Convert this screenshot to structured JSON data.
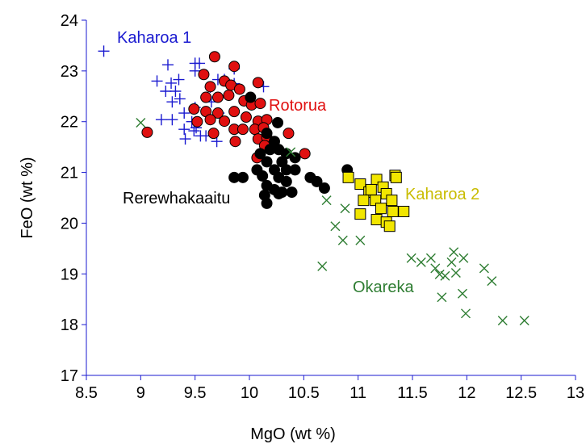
{
  "chart_data": {
    "type": "scatter",
    "xlabel": "MgO (wt %)",
    "ylabel": "FeO (wt %)",
    "xlim": [
      8.5,
      13
    ],
    "ylim": [
      17,
      24
    ],
    "xticks": [
      8.5,
      9,
      9.5,
      10,
      10.5,
      11,
      11.5,
      12,
      12.5,
      13
    ],
    "yticks": [
      17,
      18,
      19,
      20,
      21,
      22,
      23,
      24
    ],
    "series": [
      {
        "name": "Kaharoa 1",
        "color": "#1a1ad0",
        "marker": "plus",
        "x": [
          8.66,
          9.25,
          9.15,
          9.28,
          9.5,
          9.5,
          9.54,
          9.35,
          9.23,
          9.32,
          9.29,
          9.36,
          9.19,
          9.29,
          9.4,
          9.5,
          9.4,
          9.41,
          9.51,
          9.55,
          9.64,
          9.71,
          9.77,
          9.86,
          9.86,
          9.65,
          9.72,
          9.49,
          10.13,
          9.47,
          9.6,
          9.7
        ],
        "y": [
          23.39,
          23.12,
          22.8,
          22.76,
          23.15,
          23.0,
          23.15,
          22.83,
          22.6,
          22.6,
          22.39,
          22.45,
          22.04,
          22.04,
          22.17,
          22.28,
          21.85,
          21.66,
          21.88,
          21.72,
          22.68,
          22.83,
          22.83,
          23.04,
          22.75,
          22.39,
          22.17,
          21.82,
          22.69,
          22.0,
          21.72,
          21.61
        ]
      },
      {
        "name": "Rotorua",
        "color": "#e01010",
        "marker": "circle",
        "x": [
          9.68,
          9.86,
          9.06,
          9.58,
          9.64,
          9.77,
          9.83,
          9.91,
          10.08,
          9.6,
          9.71,
          9.81,
          9.95,
          10.02,
          10.1,
          9.49,
          9.6,
          9.71,
          9.86,
          9.97,
          10.08,
          10.16,
          9.64,
          9.77,
          9.86,
          9.94,
          10.05,
          10.13,
          10.36,
          9.67,
          9.87,
          10.08,
          10.16,
          10.07,
          10.51,
          10.14,
          9.52
        ],
        "y": [
          23.28,
          23.09,
          21.79,
          22.93,
          22.69,
          22.8,
          22.72,
          22.64,
          22.77,
          22.48,
          22.48,
          22.52,
          22.41,
          22.33,
          22.36,
          22.25,
          22.2,
          22.17,
          22.2,
          22.09,
          22.01,
          22.04,
          22.04,
          22.01,
          21.85,
          21.85,
          21.85,
          21.88,
          21.77,
          21.77,
          21.61,
          21.66,
          21.69,
          21.29,
          21.37,
          21.53,
          22.0
        ]
      },
      {
        "name": "Rerewhakaaitu",
        "color": "#000000",
        "marker": "circle",
        "x": [
          10.01,
          10.26,
          10.16,
          10.23,
          10.19,
          10.27,
          10.1,
          10.34,
          10.42,
          10.3,
          10.16,
          10.07,
          10.23,
          10.34,
          10.42,
          9.86,
          9.94,
          10.12,
          10.27,
          10.56,
          10.62,
          10.16,
          10.34,
          10.69,
          10.23,
          10.3,
          10.39,
          10.14,
          10.27,
          10.16,
          10.9
        ],
        "y": [
          22.48,
          21.98,
          21.77,
          21.61,
          21.45,
          21.45,
          21.37,
          21.37,
          21.29,
          21.21,
          21.21,
          21.05,
          21.05,
          21.05,
          21.05,
          20.9,
          20.9,
          20.93,
          20.9,
          20.9,
          20.82,
          20.74,
          20.82,
          20.69,
          20.66,
          20.61,
          20.61,
          20.55,
          20.58,
          20.39,
          21.05
        ]
      },
      {
        "name": "Kaharoa 2",
        "color": "#f2e600",
        "marker": "square",
        "x": [
          10.91,
          11.02,
          11.1,
          11.17,
          11.23,
          11.34,
          11.35,
          11.05,
          11.16,
          11.26,
          11.31,
          11.02,
          11.17,
          11.26,
          11.29,
          11.32,
          11.42,
          11.12,
          11.21
        ],
        "y": [
          20.9,
          20.77,
          20.61,
          20.86,
          20.71,
          20.94,
          20.9,
          20.45,
          20.45,
          20.58,
          20.45,
          20.18,
          20.07,
          20.02,
          19.94,
          20.23,
          20.23,
          20.66,
          20.29
        ]
      },
      {
        "name": "Okareka",
        "color": "#2e7d32",
        "marker": "x",
        "x": [
          9.0,
          10.38,
          10.71,
          10.67,
          10.79,
          10.86,
          10.88,
          11.02,
          11.49,
          11.58,
          11.67,
          11.71,
          11.75,
          11.8,
          11.77,
          11.86,
          11.88,
          11.9,
          11.96,
          11.97,
          11.99,
          12.16,
          12.23,
          12.33,
          12.53
        ],
        "y": [
          21.98,
          21.4,
          20.45,
          19.15,
          19.94,
          19.66,
          20.29,
          19.66,
          19.31,
          19.23,
          19.31,
          19.11,
          18.99,
          18.96,
          18.54,
          19.23,
          19.43,
          19.02,
          18.61,
          19.31,
          18.22,
          19.11,
          18.86,
          18.08,
          18.08
        ]
      }
    ]
  }
}
